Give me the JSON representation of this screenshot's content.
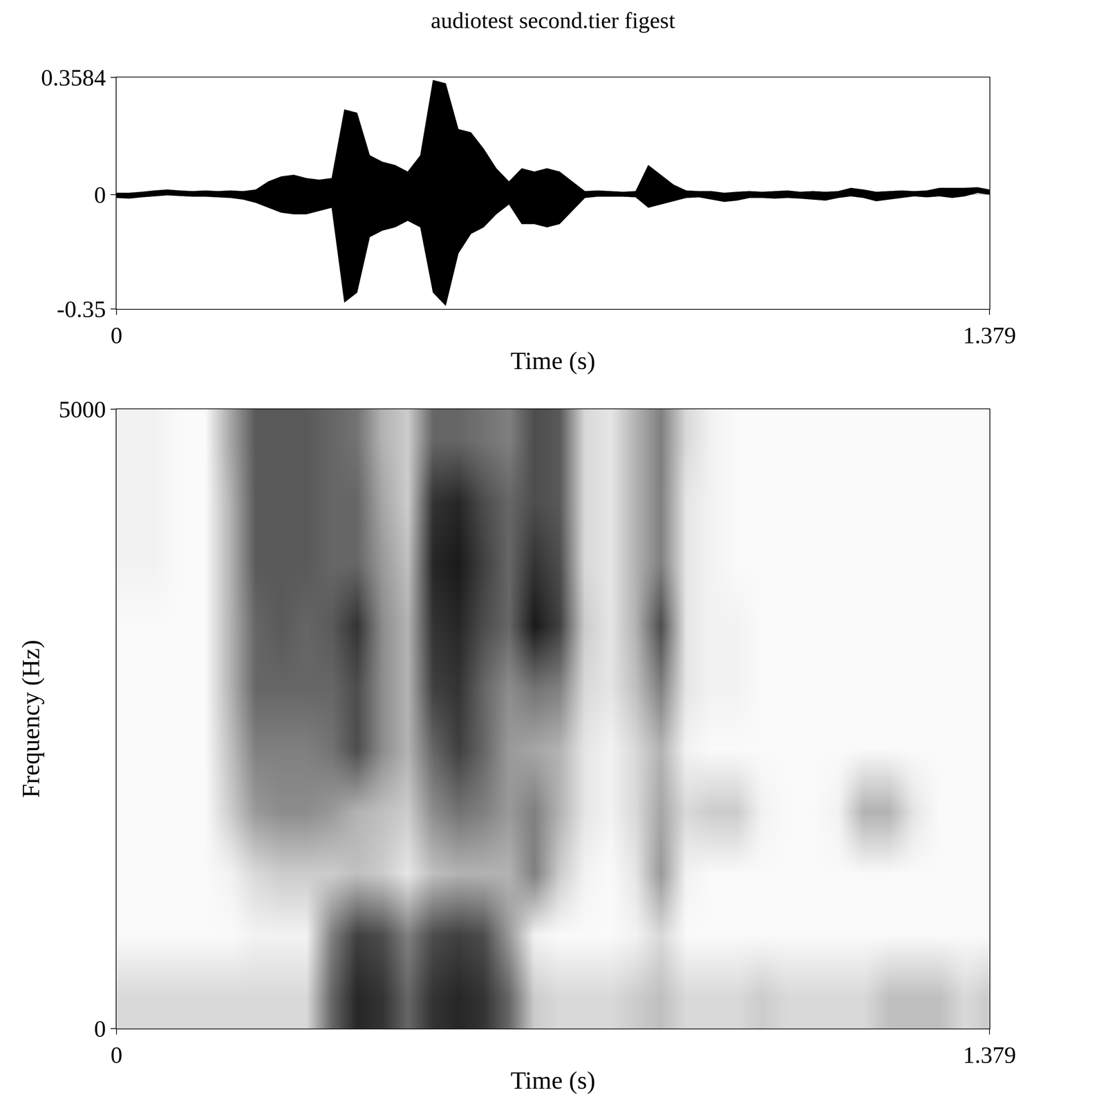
{
  "title": "audiotest second.tier figest",
  "chart_data": [
    {
      "type": "area",
      "color": "#000000",
      "xlabel": "Time (s)",
      "xlim": [
        0,
        1.379
      ],
      "xticks": [
        0,
        1.379
      ],
      "ylim": [
        -0.35,
        0.3584
      ],
      "yticks": [
        -0.35,
        0,
        0.3584
      ],
      "x": [
        0,
        0.02,
        0.04,
        0.06,
        0.08,
        0.1,
        0.12,
        0.14,
        0.16,
        0.18,
        0.2,
        0.22,
        0.24,
        0.26,
        0.28,
        0.3,
        0.32,
        0.34,
        0.36,
        0.38,
        0.4,
        0.42,
        0.44,
        0.46,
        0.48,
        0.5,
        0.52,
        0.54,
        0.56,
        0.58,
        0.6,
        0.62,
        0.64,
        0.66,
        0.68,
        0.7,
        0.72,
        0.74,
        0.76,
        0.78,
        0.8,
        0.82,
        0.84,
        0.86,
        0.88,
        0.9,
        0.92,
        0.94,
        0.96,
        0.98,
        1.0,
        1.02,
        1.04,
        1.06,
        1.08,
        1.1,
        1.12,
        1.14,
        1.16,
        1.18,
        1.2,
        1.22,
        1.24,
        1.26,
        1.28,
        1.3,
        1.32,
        1.34,
        1.36,
        1.379
      ],
      "upper": [
        0.005,
        0.005,
        0.008,
        0.012,
        0.015,
        0.012,
        0.01,
        0.012,
        0.01,
        0.012,
        0.01,
        0.015,
        0.04,
        0.055,
        0.06,
        0.05,
        0.045,
        0.05,
        0.26,
        0.25,
        0.12,
        0.1,
        0.09,
        0.07,
        0.12,
        0.35,
        0.34,
        0.2,
        0.19,
        0.14,
        0.08,
        0.04,
        0.08,
        0.07,
        0.08,
        0.07,
        0.04,
        0.01,
        0.012,
        0.01,
        0.008,
        0.01,
        0.09,
        0.06,
        0.03,
        0.012,
        0.01,
        0.01,
        0.005,
        0.008,
        0.01,
        0.008,
        0.01,
        0.012,
        0.008,
        0.01,
        0.008,
        0.01,
        0.02,
        0.015,
        0.008,
        0.01,
        0.012,
        0.01,
        0.012,
        0.02,
        0.02,
        0.02,
        0.022,
        0.015
      ],
      "lower": [
        -0.01,
        -0.012,
        -0.008,
        -0.005,
        -0.002,
        -0.004,
        -0.006,
        -0.006,
        -0.008,
        -0.01,
        -0.015,
        -0.025,
        -0.04,
        -0.055,
        -0.06,
        -0.06,
        -0.05,
        -0.04,
        -0.33,
        -0.3,
        -0.13,
        -0.11,
        -0.1,
        -0.08,
        -0.1,
        -0.3,
        -0.34,
        -0.18,
        -0.12,
        -0.1,
        -0.06,
        -0.03,
        -0.09,
        -0.09,
        -0.1,
        -0.09,
        -0.05,
        -0.01,
        -0.006,
        -0.006,
        -0.006,
        -0.008,
        -0.04,
        -0.03,
        -0.02,
        -0.01,
        -0.008,
        -0.015,
        -0.022,
        -0.018,
        -0.01,
        -0.01,
        -0.012,
        -0.01,
        -0.012,
        -0.015,
        -0.018,
        -0.01,
        -0.005,
        -0.01,
        -0.02,
        -0.015,
        -0.01,
        -0.005,
        -0.008,
        -0.005,
        -0.01,
        -0.005,
        0.005,
        0.0
      ]
    },
    {
      "type": "heatmap",
      "xlabel": "Time (s)",
      "ylabel": "Frequency (Hz)",
      "xlim": [
        0,
        1.379
      ],
      "xticks": [
        0,
        1.379
      ],
      "ylim": [
        0,
        5000
      ],
      "yticks": [
        0,
        5000
      ],
      "zlim": [
        0,
        1
      ],
      "x_edges": [
        0,
        0.04,
        0.08,
        0.12,
        0.16,
        0.2,
        0.24,
        0.28,
        0.32,
        0.36,
        0.4,
        0.44,
        0.48,
        0.52,
        0.56,
        0.6,
        0.64,
        0.68,
        0.72,
        0.76,
        0.8,
        0.84,
        0.88,
        0.92,
        0.96,
        1.0,
        1.04,
        1.08,
        1.12,
        1.16,
        1.2,
        1.24,
        1.28,
        1.32,
        1.36,
        1.379
      ],
      "y_edges": [
        0,
        500,
        1000,
        1500,
        2000,
        2500,
        3000,
        3500,
        4000,
        4500,
        5000
      ],
      "cells": [
        [
          0.15,
          0.15,
          0.15,
          0.15,
          0.15,
          0.15,
          0.15,
          0.15,
          0.6,
          0.85,
          0.8,
          0.6,
          0.8,
          0.85,
          0.8,
          0.6,
          0.2,
          0.15,
          0.15,
          0.15,
          0.2,
          0.25,
          0.15,
          0.15,
          0.15,
          0.2,
          0.15,
          0.15,
          0.15,
          0.15,
          0.25,
          0.25,
          0.25,
          0.15,
          0.2
        ],
        [
          0.02,
          0.02,
          0.02,
          0.02,
          0.02,
          0.05,
          0.05,
          0.05,
          0.5,
          0.75,
          0.7,
          0.5,
          0.7,
          0.75,
          0.7,
          0.4,
          0.05,
          0.02,
          0.02,
          0.02,
          0.05,
          0.15,
          0.02,
          0.02,
          0.02,
          0.02,
          0.02,
          0.02,
          0.02,
          0.02,
          0.02,
          0.02,
          0.02,
          0.02,
          0.02
        ],
        [
          0.02,
          0.02,
          0.02,
          0.02,
          0.05,
          0.15,
          0.2,
          0.2,
          0.2,
          0.25,
          0.2,
          0.1,
          0.25,
          0.3,
          0.3,
          0.3,
          0.5,
          0.2,
          0.05,
          0.02,
          0.1,
          0.4,
          0.05,
          0.02,
          0.02,
          0.02,
          0.02,
          0.02,
          0.02,
          0.02,
          0.02,
          0.02,
          0.02,
          0.02,
          0.02
        ],
        [
          0.02,
          0.02,
          0.02,
          0.02,
          0.2,
          0.4,
          0.45,
          0.45,
          0.4,
          0.3,
          0.25,
          0.2,
          0.45,
          0.55,
          0.5,
          0.4,
          0.5,
          0.3,
          0.1,
          0.05,
          0.15,
          0.35,
          0.15,
          0.2,
          0.2,
          0.05,
          0.02,
          0.02,
          0.05,
          0.3,
          0.3,
          0.1,
          0.02,
          0.02,
          0.02
        ],
        [
          0.02,
          0.02,
          0.02,
          0.02,
          0.25,
          0.5,
          0.5,
          0.5,
          0.55,
          0.7,
          0.45,
          0.3,
          0.6,
          0.75,
          0.6,
          0.4,
          0.35,
          0.3,
          0.1,
          0.05,
          0.15,
          0.3,
          0.05,
          0.02,
          0.02,
          0.02,
          0.02,
          0.02,
          0.02,
          0.02,
          0.02,
          0.02,
          0.02,
          0.02,
          0.02
        ],
        [
          0.02,
          0.02,
          0.02,
          0.02,
          0.3,
          0.6,
          0.6,
          0.6,
          0.6,
          0.7,
          0.45,
          0.3,
          0.75,
          0.8,
          0.6,
          0.45,
          0.55,
          0.5,
          0.15,
          0.1,
          0.25,
          0.5,
          0.1,
          0.05,
          0.05,
          0.02,
          0.02,
          0.02,
          0.02,
          0.02,
          0.02,
          0.02,
          0.02,
          0.02,
          0.02
        ],
        [
          0.02,
          0.02,
          0.02,
          0.02,
          0.3,
          0.6,
          0.65,
          0.6,
          0.65,
          0.8,
          0.45,
          0.3,
          0.8,
          0.85,
          0.7,
          0.6,
          0.9,
          0.75,
          0.2,
          0.1,
          0.3,
          0.7,
          0.1,
          0.05,
          0.05,
          0.02,
          0.02,
          0.02,
          0.02,
          0.02,
          0.02,
          0.02,
          0.02,
          0.02,
          0.02
        ],
        [
          0.05,
          0.05,
          0.02,
          0.02,
          0.3,
          0.65,
          0.65,
          0.65,
          0.6,
          0.6,
          0.4,
          0.25,
          0.85,
          0.9,
          0.75,
          0.6,
          0.8,
          0.7,
          0.15,
          0.1,
          0.3,
          0.5,
          0.1,
          0.05,
          0.02,
          0.02,
          0.02,
          0.02,
          0.02,
          0.02,
          0.02,
          0.02,
          0.02,
          0.02,
          0.02
        ],
        [
          0.05,
          0.05,
          0.02,
          0.02,
          0.3,
          0.65,
          0.65,
          0.65,
          0.6,
          0.6,
          0.35,
          0.2,
          0.8,
          0.85,
          0.7,
          0.6,
          0.7,
          0.65,
          0.15,
          0.1,
          0.3,
          0.5,
          0.1,
          0.05,
          0.02,
          0.02,
          0.02,
          0.02,
          0.02,
          0.02,
          0.02,
          0.02,
          0.02,
          0.02,
          0.02
        ],
        [
          0.05,
          0.05,
          0.02,
          0.02,
          0.35,
          0.65,
          0.65,
          0.65,
          0.6,
          0.55,
          0.3,
          0.2,
          0.6,
          0.6,
          0.55,
          0.5,
          0.7,
          0.65,
          0.15,
          0.1,
          0.3,
          0.5,
          0.15,
          0.05,
          0.02,
          0.02,
          0.02,
          0.02,
          0.02,
          0.02,
          0.02,
          0.02,
          0.02,
          0.02,
          0.02
        ]
      ]
    }
  ]
}
